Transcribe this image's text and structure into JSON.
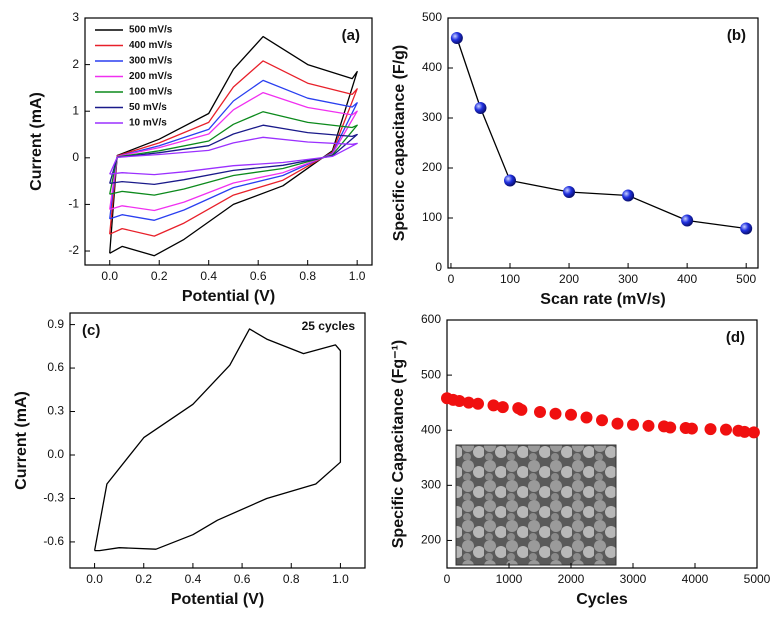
{
  "chart_data": [
    {
      "type": "line",
      "label": "(a)",
      "x_label": "Potential (V)",
      "y_label": "Current (mA)",
      "xlim": [
        -0.1,
        1.06
      ],
      "ylim": [
        -2.3,
        3
      ],
      "xticks": [
        {
          "value": 0,
          "label": "0.0"
        },
        0.2,
        0.4,
        0.6,
        0.8,
        {
          "value": 1,
          "label": "1.0"
        }
      ],
      "yticks": [
        -2,
        -1,
        0,
        1,
        2,
        3
      ],
      "legend": "upper left",
      "x": [
        0,
        0.03,
        0.2,
        0.4,
        0.5,
        0.62,
        0.8,
        0.98,
        1.0,
        0.9,
        0.7,
        0.5,
        0.3,
        0.18,
        0.05,
        0
      ],
      "series": [
        {
          "name": "500 mV/s",
          "color": "#000000",
          "values": [
            -2.05,
            0.05,
            0.4,
            0.95,
            1.9,
            2.6,
            2.0,
            1.7,
            1.85,
            0.15,
            -0.6,
            -1.0,
            -1.75,
            -2.1,
            -1.9,
            -2.05
          ]
        },
        {
          "name": "400 mV/s",
          "color": "#e8202a",
          "values": [
            -1.64,
            0.04,
            0.32,
            0.76,
            1.52,
            2.08,
            1.6,
            1.36,
            1.48,
            0.12,
            -0.48,
            -0.8,
            -1.4,
            -1.68,
            -1.52,
            -1.64
          ]
        },
        {
          "name": "300 mV/s",
          "color": "#2a3ff0",
          "values": [
            -1.31,
            0.03,
            0.26,
            0.61,
            1.22,
            1.66,
            1.28,
            1.09,
            1.18,
            0.1,
            -0.38,
            -0.64,
            -1.12,
            -1.34,
            -1.22,
            -1.31
          ]
        },
        {
          "name": "200 mV/s",
          "color": "#f030f0",
          "values": [
            -1.11,
            0.03,
            0.22,
            0.51,
            1.03,
            1.4,
            1.08,
            0.92,
            1.0,
            0.08,
            -0.32,
            -0.54,
            -0.95,
            -1.13,
            -1.03,
            -1.11
          ]
        },
        {
          "name": "100 mV/s",
          "color": "#0c8a1c",
          "values": [
            -0.78,
            0.02,
            0.15,
            0.36,
            0.72,
            0.99,
            0.76,
            0.65,
            0.7,
            0.06,
            -0.23,
            -0.38,
            -0.67,
            -0.8,
            -0.72,
            -0.78
          ]
        },
        {
          "name": "50 mV/s",
          "color": "#1a1a8a",
          "values": [
            -0.55,
            0.01,
            0.11,
            0.26,
            0.51,
            0.7,
            0.54,
            0.46,
            0.5,
            0.04,
            -0.16,
            -0.27,
            -0.47,
            -0.57,
            -0.51,
            -0.55
          ]
        },
        {
          "name": "10 mV/s",
          "color": "#9b30ff",
          "values": [
            -0.35,
            0.01,
            0.07,
            0.16,
            0.32,
            0.44,
            0.34,
            0.29,
            0.31,
            0.03,
            -0.1,
            -0.17,
            -0.3,
            -0.36,
            -0.32,
            -0.35
          ]
        }
      ]
    },
    {
      "type": "line",
      "markers": true,
      "label": "(b)",
      "x_label": "Scan rate (mV/s)",
      "y_label": "Specific capacitance (F/g)",
      "xlim": [
        -5,
        520
      ],
      "ylim": [
        0,
        500
      ],
      "xticks": [
        0,
        100,
        200,
        300,
        400,
        500
      ],
      "yticks": [
        0,
        100,
        200,
        300,
        400,
        500
      ],
      "x": [
        10,
        50,
        100,
        200,
        300,
        400,
        500
      ],
      "color": "#2030e0",
      "values": [
        460,
        320,
        175,
        152,
        145,
        95,
        79
      ]
    },
    {
      "type": "line",
      "label": "(c)",
      "annotation": "25 cycles",
      "x_label": "Potential (V)",
      "y_label": "Current (mA)",
      "xlim": [
        -0.1,
        1.1
      ],
      "ylim": [
        -0.78,
        0.98
      ],
      "xticks": [
        {
          "value": 0,
          "label": "0.0"
        },
        0.2,
        0.4,
        0.6,
        0.8,
        {
          "value": 1,
          "label": "1.0"
        }
      ],
      "yticks": [
        -0.6,
        -0.3,
        {
          "value": 0,
          "label": "0.0"
        },
        0.3,
        0.6,
        0.9
      ],
      "color": "#000000",
      "x": [
        0,
        0.05,
        0.2,
        0.4,
        0.55,
        0.63,
        0.7,
        0.85,
        0.98,
        1.0,
        1.0,
        0.9,
        0.7,
        0.5,
        0.4,
        0.25,
        0.1,
        0.02,
        0
      ],
      "values": [
        -0.66,
        -0.2,
        0.12,
        0.35,
        0.62,
        0.87,
        0.8,
        0.7,
        0.76,
        0.72,
        -0.05,
        -0.2,
        -0.3,
        -0.45,
        -0.55,
        -0.65,
        -0.64,
        -0.66,
        -0.66
      ]
    },
    {
      "type": "scatter",
      "label": "(d)",
      "x_label": "Cycles",
      "y_label": "Specific Capacitance (Fg⁻¹)",
      "xlim": [
        0,
        5000
      ],
      "ylim": [
        150,
        600
      ],
      "xticks": [
        0,
        1000,
        2000,
        3000,
        4000,
        5000
      ],
      "yticks": [
        200,
        300,
        400,
        500,
        600
      ],
      "color": "#f01010",
      "x": [
        0,
        100,
        200,
        350,
        500,
        750,
        900,
        1150,
        1200,
        1500,
        1750,
        2000,
        2250,
        2500,
        2750,
        3000,
        3250,
        3500,
        3600,
        3850,
        3950,
        4250,
        4500,
        4700,
        4800,
        4950
      ],
      "values": [
        458,
        455,
        453,
        450,
        448,
        445,
        442,
        440,
        437,
        433,
        430,
        428,
        423,
        418,
        412,
        410,
        408,
        407,
        405,
        404,
        403,
        402,
        401,
        399,
        397,
        396
      ]
    }
  ]
}
